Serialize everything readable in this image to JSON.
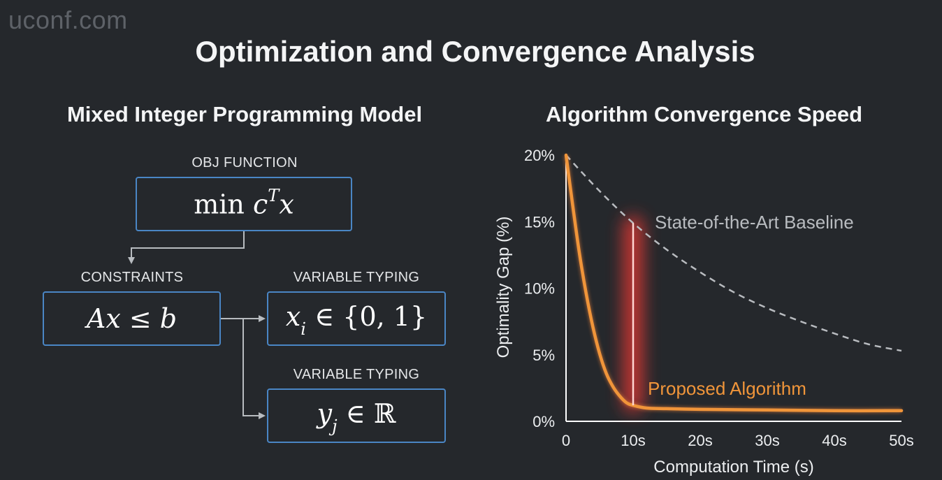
{
  "watermark": "uconf.com",
  "title": "Optimization and Convergence Analysis",
  "left_panel": {
    "title": "Mixed Integer Programming Model",
    "objective": {
      "label": "OBJ FUNCTION",
      "formula": "min cᵀx",
      "parts": {
        "op": "min",
        "var": "c",
        "sup": "T",
        "var2": "x"
      }
    },
    "constraints": {
      "label": "CONSTRAINTS",
      "formula": "Ax ≤ b"
    },
    "typing_binary": {
      "label": "VARIABLE TYPING",
      "formula": "xᵢ ∈ {0, 1}",
      "parts": {
        "var": "x",
        "sub": "i",
        "rest": "∈ {0, 1}"
      }
    },
    "typing_real": {
      "label": "VARIABLE TYPING",
      "formula": "yⱼ ∈ ℝ",
      "parts": {
        "var": "y",
        "sub": "j",
        "rest": "∈ ℝ"
      }
    },
    "colors": {
      "box_border": "#4a86c5",
      "arrow": "#b8bcc0"
    }
  },
  "right_panel": {
    "title": "Algorithm Convergence Speed"
  },
  "chart_data": {
    "type": "line",
    "title": "Algorithm Convergence Speed",
    "xlabel": "Computation Time (s)",
    "ylabel": "Optimality Gap (%)",
    "x_ticks": [
      "0",
      "10s",
      "20s",
      "30s",
      "40s",
      "50s"
    ],
    "y_ticks": [
      "0%",
      "5%",
      "10%",
      "15%",
      "20%"
    ],
    "xlim": [
      0,
      50
    ],
    "ylim": [
      0,
      20
    ],
    "grid": false,
    "series": [
      {
        "name": "State-of-the-Art Baseline",
        "style": "dashed",
        "color": "#b9bcc0",
        "x": [
          0,
          5,
          10,
          15,
          20,
          25,
          30,
          35,
          40,
          45,
          50
        ],
        "y": [
          20,
          17.3,
          14.9,
          12.9,
          11.2,
          9.7,
          8.5,
          7.5,
          6.6,
          5.8,
          5.3
        ]
      },
      {
        "name": "Proposed Algorithm",
        "style": "solid",
        "color": "#f0953a",
        "x": [
          0,
          1,
          2,
          3,
          4,
          5,
          6,
          7,
          8,
          9,
          10,
          12,
          15,
          20,
          30,
          40,
          50
        ],
        "y": [
          20,
          16.2,
          12.6,
          9.6,
          7.1,
          5.1,
          3.6,
          2.6,
          1.9,
          1.4,
          1.2,
          1.0,
          0.95,
          0.9,
          0.85,
          0.8,
          0.8
        ]
      }
    ],
    "annotations": [
      {
        "type": "vertical-gap",
        "x": 10,
        "y_from": 1.2,
        "y_to": 14.9,
        "color": "#ff4a45"
      }
    ],
    "colors": {
      "axis": "#ffffff",
      "tick_text": "#eceef0",
      "baseline_label": "#b9bcc0",
      "proposed_label": "#f0953a",
      "gap_glow": "#ff3b36"
    }
  }
}
